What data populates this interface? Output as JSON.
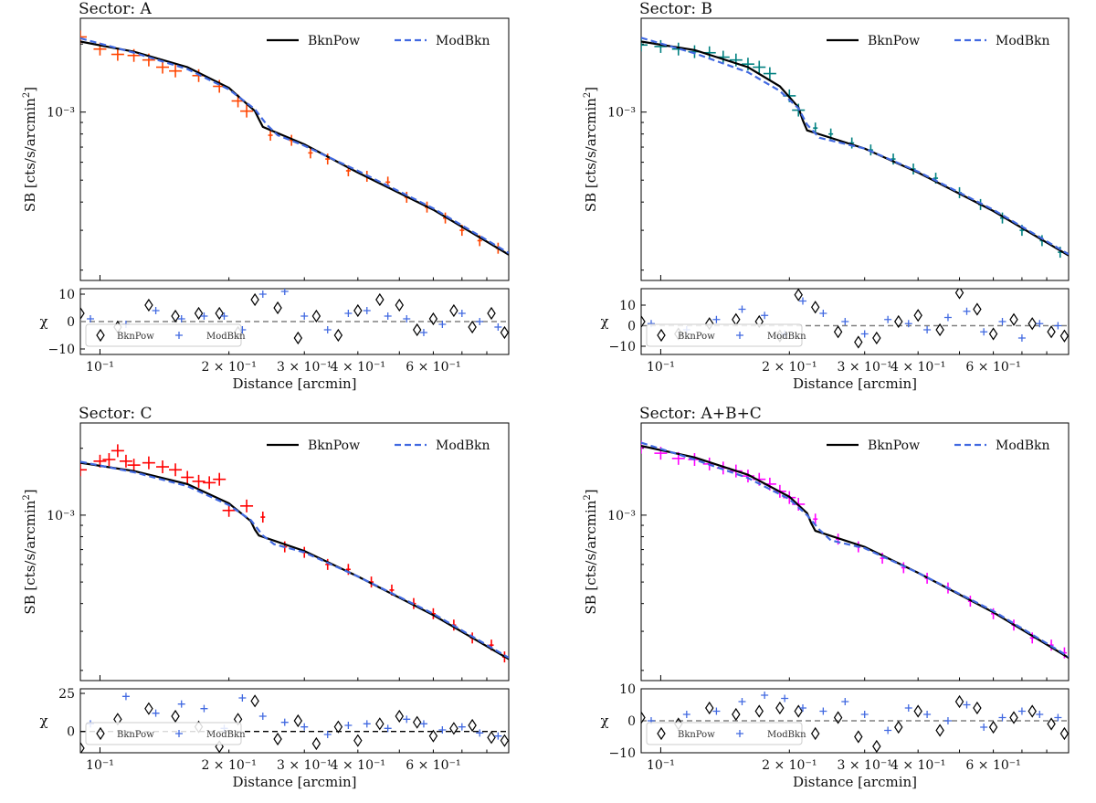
{
  "figure": {
    "xlabel": "Distance [arcmin]",
    "ylabel_sb": "SB [cts/s/arcmin",
    "ylabel_sb_sup": "2",
    "ylabel_sb_tail": "]",
    "ylabel_chi": "χ"
  },
  "legend": {
    "main": [
      "BknPow",
      "ModBkn"
    ],
    "resid": [
      "BknPow",
      "ModBkn"
    ]
  },
  "xtick_labels": [
    "10⁻¹",
    "2 × 10⁻¹",
    "3 × 10⁻¹",
    "4 × 10⁻¹",
    "6 × 10⁻¹"
  ],
  "ytick_label": "10⁻³",
  "colors": {
    "bknpow": "#000000",
    "modbkn": "#4169e1",
    "zero_line": "#808080"
  },
  "chart_data": [
    {
      "type": "line",
      "title": "Sector:  A",
      "xscale": "log",
      "yscale": "log",
      "xlim": [
        0.09,
        0.9
      ],
      "ylim": [
        0.00018,
        0.0026
      ],
      "break_x": 0.24,
      "data_color": "#ff4500",
      "series": [
        {
          "name": "BknPow",
          "x": [
            0.09,
            0.12,
            0.16,
            0.2,
            0.23,
            0.235,
            0.24,
            0.3,
            0.4,
            0.6,
            0.9
          ],
          "y": [
            0.00205,
            0.00185,
            0.00158,
            0.00128,
            0.00101,
            0.00093,
            0.00086,
            0.00072,
            0.00054,
            0.00037,
            0.000234
          ]
        },
        {
          "name": "ModBkn",
          "x": [
            0.09,
            0.12,
            0.16,
            0.2,
            0.23,
            0.245,
            0.26,
            0.3,
            0.4,
            0.6,
            0.9
          ],
          "y": [
            0.00212,
            0.00183,
            0.00155,
            0.00126,
            0.00103,
            0.00088,
            0.00079,
            0.00071,
            0.00055,
            0.000375,
            0.000238
          ]
        }
      ],
      "data_points": {
        "x": [
          0.09,
          0.1,
          0.11,
          0.12,
          0.13,
          0.14,
          0.15,
          0.17,
          0.19,
          0.21,
          0.22,
          0.25,
          0.28,
          0.31,
          0.34,
          0.38,
          0.42,
          0.47,
          0.52,
          0.58,
          0.64,
          0.7,
          0.77,
          0.85
        ],
        "y": [
          0.00215,
          0.0019,
          0.0018,
          0.00178,
          0.0017,
          0.00158,
          0.00152,
          0.00145,
          0.0013,
          0.00112,
          0.00101,
          0.00079,
          0.00075,
          0.00066,
          0.00062,
          0.00055,
          0.00052,
          0.00049,
          0.00042,
          0.00038,
          0.00034,
          0.0003,
          0.00027,
          0.00025
        ]
      },
      "resid": {
        "ylim": [
          -12,
          12
        ],
        "yticks": [
          10,
          0,
          -10
        ],
        "bknpow": {
          "x": [
            0.09,
            0.11,
            0.13,
            0.15,
            0.17,
            0.19,
            0.21,
            0.23,
            0.26,
            0.29,
            0.32,
            0.36,
            0.4,
            0.45,
            0.5,
            0.55,
            0.6,
            0.67,
            0.74,
            0.82,
            0.88
          ],
          "chi": [
            3,
            -2,
            6,
            2,
            3,
            3,
            -4,
            8,
            5,
            -6,
            2,
            -5,
            4,
            8,
            6,
            -3,
            1,
            4,
            -2,
            3,
            -4
          ]
        },
        "modbkn": {
          "x": [
            0.095,
            0.115,
            0.135,
            0.155,
            0.175,
            0.195,
            0.215,
            0.24,
            0.27,
            0.3,
            0.34,
            0.38,
            0.42,
            0.47,
            0.52,
            0.57,
            0.63,
            0.7,
            0.77,
            0.85
          ],
          "chi": [
            1,
            -1,
            4,
            1,
            2,
            2,
            -3,
            10,
            11,
            2,
            -3,
            3,
            4,
            2,
            1,
            -4,
            -1,
            3,
            0,
            -2
          ]
        }
      }
    },
    {
      "type": "line",
      "title": "Sector:  B",
      "xscale": "log",
      "yscale": "log",
      "xlim": [
        0.09,
        0.9
      ],
      "ylim": [
        0.00018,
        0.0026
      ],
      "break_x": 0.22,
      "data_color": "#008080",
      "series": [
        {
          "name": "BknPow",
          "x": [
            0.09,
            0.12,
            0.16,
            0.19,
            0.21,
            0.215,
            0.22,
            0.3,
            0.4,
            0.6,
            0.9
          ],
          "y": [
            0.00205,
            0.00188,
            0.00158,
            0.0013,
            0.00105,
            0.00092,
            0.00083,
            0.00069,
            0.00054,
            0.000365,
            0.000232
          ]
        },
        {
          "name": "ModBkn",
          "x": [
            0.09,
            0.12,
            0.16,
            0.19,
            0.21,
            0.22,
            0.235,
            0.3,
            0.4,
            0.6,
            0.9
          ],
          "y": [
            0.00213,
            0.00182,
            0.0015,
            0.00124,
            0.00104,
            0.00088,
            0.00077,
            0.00069,
            0.000545,
            0.00037,
            0.000235
          ]
        }
      ],
      "data_points": {
        "x": [
          0.09,
          0.1,
          0.11,
          0.12,
          0.13,
          0.14,
          0.15,
          0.16,
          0.17,
          0.18,
          0.2,
          0.21,
          0.23,
          0.25,
          0.28,
          0.31,
          0.35,
          0.39,
          0.44,
          0.5,
          0.56,
          0.63,
          0.7,
          0.78,
          0.86
        ],
        "y": [
          0.00198,
          0.00195,
          0.0019,
          0.00185,
          0.00183,
          0.00175,
          0.0017,
          0.00163,
          0.00158,
          0.00148,
          0.00118,
          0.00102,
          0.00085,
          0.0008,
          0.00073,
          0.00068,
          0.00062,
          0.00056,
          0.00051,
          0.00044,
          0.00039,
          0.00034,
          0.0003,
          0.00027,
          0.00024
        ]
      },
      "resid": {
        "ylim": [
          -14,
          18
        ],
        "yticks": [
          10,
          0,
          -10
        ],
        "bknpow": {
          "x": [
            0.09,
            0.11,
            0.13,
            0.15,
            0.17,
            0.19,
            0.21,
            0.23,
            0.26,
            0.29,
            0.32,
            0.36,
            0.4,
            0.45,
            0.5,
            0.55,
            0.6,
            0.67,
            0.74,
            0.82,
            0.88
          ],
          "chi": [
            2,
            -4,
            1,
            3,
            2,
            -5,
            15,
            9,
            -3,
            -8,
            -6,
            2,
            5,
            -2,
            16,
            8,
            -4,
            3,
            1,
            -3,
            -5
          ]
        },
        "modbkn": {
          "x": [
            0.095,
            0.115,
            0.135,
            0.155,
            0.175,
            0.195,
            0.215,
            0.24,
            0.27,
            0.3,
            0.34,
            0.38,
            0.42,
            0.47,
            0.52,
            0.57,
            0.63,
            0.7,
            0.77,
            0.85
          ],
          "chi": [
            1,
            -2,
            3,
            8,
            5,
            -4,
            12,
            6,
            2,
            -4,
            3,
            1,
            -2,
            4,
            7,
            -3,
            2,
            -6,
            1,
            0
          ]
        }
      }
    },
    {
      "type": "line",
      "title": "Sector:  C",
      "xscale": "log",
      "yscale": "log",
      "xlim": [
        0.09,
        0.9
      ],
      "ylim": [
        0.00018,
        0.0026
      ],
      "break_x": 0.235,
      "data_color": "#ff0000",
      "series": [
        {
          "name": "BknPow",
          "x": [
            0.09,
            0.12,
            0.16,
            0.2,
            0.225,
            0.23,
            0.235,
            0.3,
            0.4,
            0.6,
            0.9
          ],
          "y": [
            0.00172,
            0.00158,
            0.00138,
            0.00113,
            0.00094,
            0.00086,
            0.00081,
            0.00069,
            0.00053,
            0.000355,
            0.000225
          ]
        },
        {
          "name": "ModBkn",
          "x": [
            0.09,
            0.12,
            0.16,
            0.2,
            0.225,
            0.24,
            0.255,
            0.3,
            0.4,
            0.6,
            0.9
          ],
          "y": [
            0.00174,
            0.00156,
            0.00135,
            0.00111,
            0.00095,
            0.00081,
            0.00074,
            0.00068,
            0.00053,
            0.00036,
            0.000228
          ]
        }
      ],
      "data_points": {
        "x": [
          0.09,
          0.1,
          0.105,
          0.11,
          0.115,
          0.12,
          0.13,
          0.14,
          0.15,
          0.16,
          0.17,
          0.18,
          0.19,
          0.2,
          0.22,
          0.24,
          0.27,
          0.3,
          0.34,
          0.38,
          0.43,
          0.48,
          0.54,
          0.6,
          0.67,
          0.74,
          0.82,
          0.88
        ],
        "y": [
          0.0016,
          0.00175,
          0.00178,
          0.00195,
          0.00175,
          0.00168,
          0.00172,
          0.00165,
          0.0016,
          0.00148,
          0.00142,
          0.0014,
          0.00145,
          0.00105,
          0.0011,
          0.00098,
          0.00072,
          0.00068,
          0.0006,
          0.00057,
          0.0005,
          0.00046,
          0.0004,
          0.00036,
          0.00032,
          0.00028,
          0.00026,
          0.00023
        ]
      },
      "resid": {
        "ylim": [
          -14,
          28
        ],
        "yticks": [
          25,
          0
        ],
        "bknpow": {
          "x": [
            0.09,
            0.11,
            0.13,
            0.15,
            0.17,
            0.19,
            0.21,
            0.23,
            0.26,
            0.29,
            0.32,
            0.36,
            0.4,
            0.45,
            0.5,
            0.55,
            0.6,
            0.67,
            0.74,
            0.82,
            0.88
          ],
          "chi": [
            -11,
            8,
            15,
            10,
            3,
            -10,
            8,
            20,
            -5,
            7,
            -8,
            3,
            -6,
            5,
            10,
            6,
            -3,
            2,
            4,
            -4,
            -6
          ]
        },
        "modbkn": {
          "x": [
            0.095,
            0.115,
            0.135,
            0.155,
            0.175,
            0.195,
            0.215,
            0.24,
            0.27,
            0.3,
            0.34,
            0.38,
            0.42,
            0.47,
            0.52,
            0.57,
            0.63,
            0.7,
            0.77,
            0.85
          ],
          "chi": [
            5,
            23,
            12,
            18,
            15,
            2,
            22,
            10,
            6,
            3,
            -2,
            4,
            5,
            2,
            8,
            5,
            1,
            3,
            -1,
            -3
          ]
        }
      }
    },
    {
      "type": "line",
      "title": "Sector:  A+B+C",
      "xscale": "log",
      "yscale": "log",
      "xlim": [
        0.09,
        0.9
      ],
      "ylim": [
        0.00018,
        0.0026
      ],
      "break_x": 0.23,
      "data_color": "#ff00ff",
      "series": [
        {
          "name": "BknPow",
          "x": [
            0.09,
            0.12,
            0.16,
            0.2,
            0.22,
            0.225,
            0.23,
            0.3,
            0.4,
            0.6,
            0.9
          ],
          "y": [
            0.00205,
            0.00182,
            0.00152,
            0.00121,
            0.00102,
            0.00092,
            0.00085,
            0.00072,
            0.00055,
            0.000365,
            0.000228
          ]
        },
        {
          "name": "ModBkn",
          "x": [
            0.09,
            0.12,
            0.16,
            0.2,
            0.22,
            0.235,
            0.25,
            0.3,
            0.4,
            0.6,
            0.9
          ],
          "y": [
            0.00212,
            0.00178,
            0.00147,
            0.00118,
            0.001,
            0.00086,
            0.00077,
            0.00071,
            0.00055,
            0.00037,
            0.000231
          ]
        }
      ],
      "data_points": {
        "x": [
          0.09,
          0.1,
          0.11,
          0.12,
          0.13,
          0.14,
          0.15,
          0.16,
          0.17,
          0.18,
          0.19,
          0.2,
          0.21,
          0.23,
          0.26,
          0.29,
          0.33,
          0.37,
          0.42,
          0.47,
          0.53,
          0.6,
          0.67,
          0.74,
          0.82,
          0.88
        ],
        "y": [
          0.00202,
          0.0019,
          0.0018,
          0.00178,
          0.0017,
          0.00163,
          0.00158,
          0.0015,
          0.00145,
          0.00138,
          0.00128,
          0.0012,
          0.00112,
          0.00096,
          0.00078,
          0.00072,
          0.00064,
          0.00058,
          0.00052,
          0.00047,
          0.00041,
          0.00036,
          0.00032,
          0.00028,
          0.00026,
          0.00024
        ]
      },
      "resid": {
        "ylim": [
          -10,
          10
        ],
        "yticks": [
          10,
          0,
          -10
        ],
        "bknpow": {
          "x": [
            0.09,
            0.11,
            0.13,
            0.15,
            0.17,
            0.19,
            0.21,
            0.23,
            0.26,
            0.29,
            0.32,
            0.36,
            0.4,
            0.45,
            0.5,
            0.55,
            0.6,
            0.67,
            0.74,
            0.82,
            0.88
          ],
          "chi": [
            1,
            -1,
            4,
            2,
            3,
            4,
            3,
            -4,
            1,
            -5,
            -8,
            -2,
            3,
            -3,
            6,
            4,
            -2,
            1,
            3,
            -1,
            -4
          ]
        },
        "modbkn": {
          "x": [
            0.095,
            0.115,
            0.135,
            0.155,
            0.175,
            0.195,
            0.215,
            0.24,
            0.27,
            0.3,
            0.34,
            0.38,
            0.42,
            0.47,
            0.52,
            0.57,
            0.63,
            0.7,
            0.77,
            0.85
          ],
          "chi": [
            0,
            2,
            3,
            6,
            8,
            7,
            4,
            3,
            6,
            2,
            -3,
            4,
            2,
            0,
            5,
            -2,
            1,
            3,
            2,
            1
          ]
        }
      }
    }
  ]
}
